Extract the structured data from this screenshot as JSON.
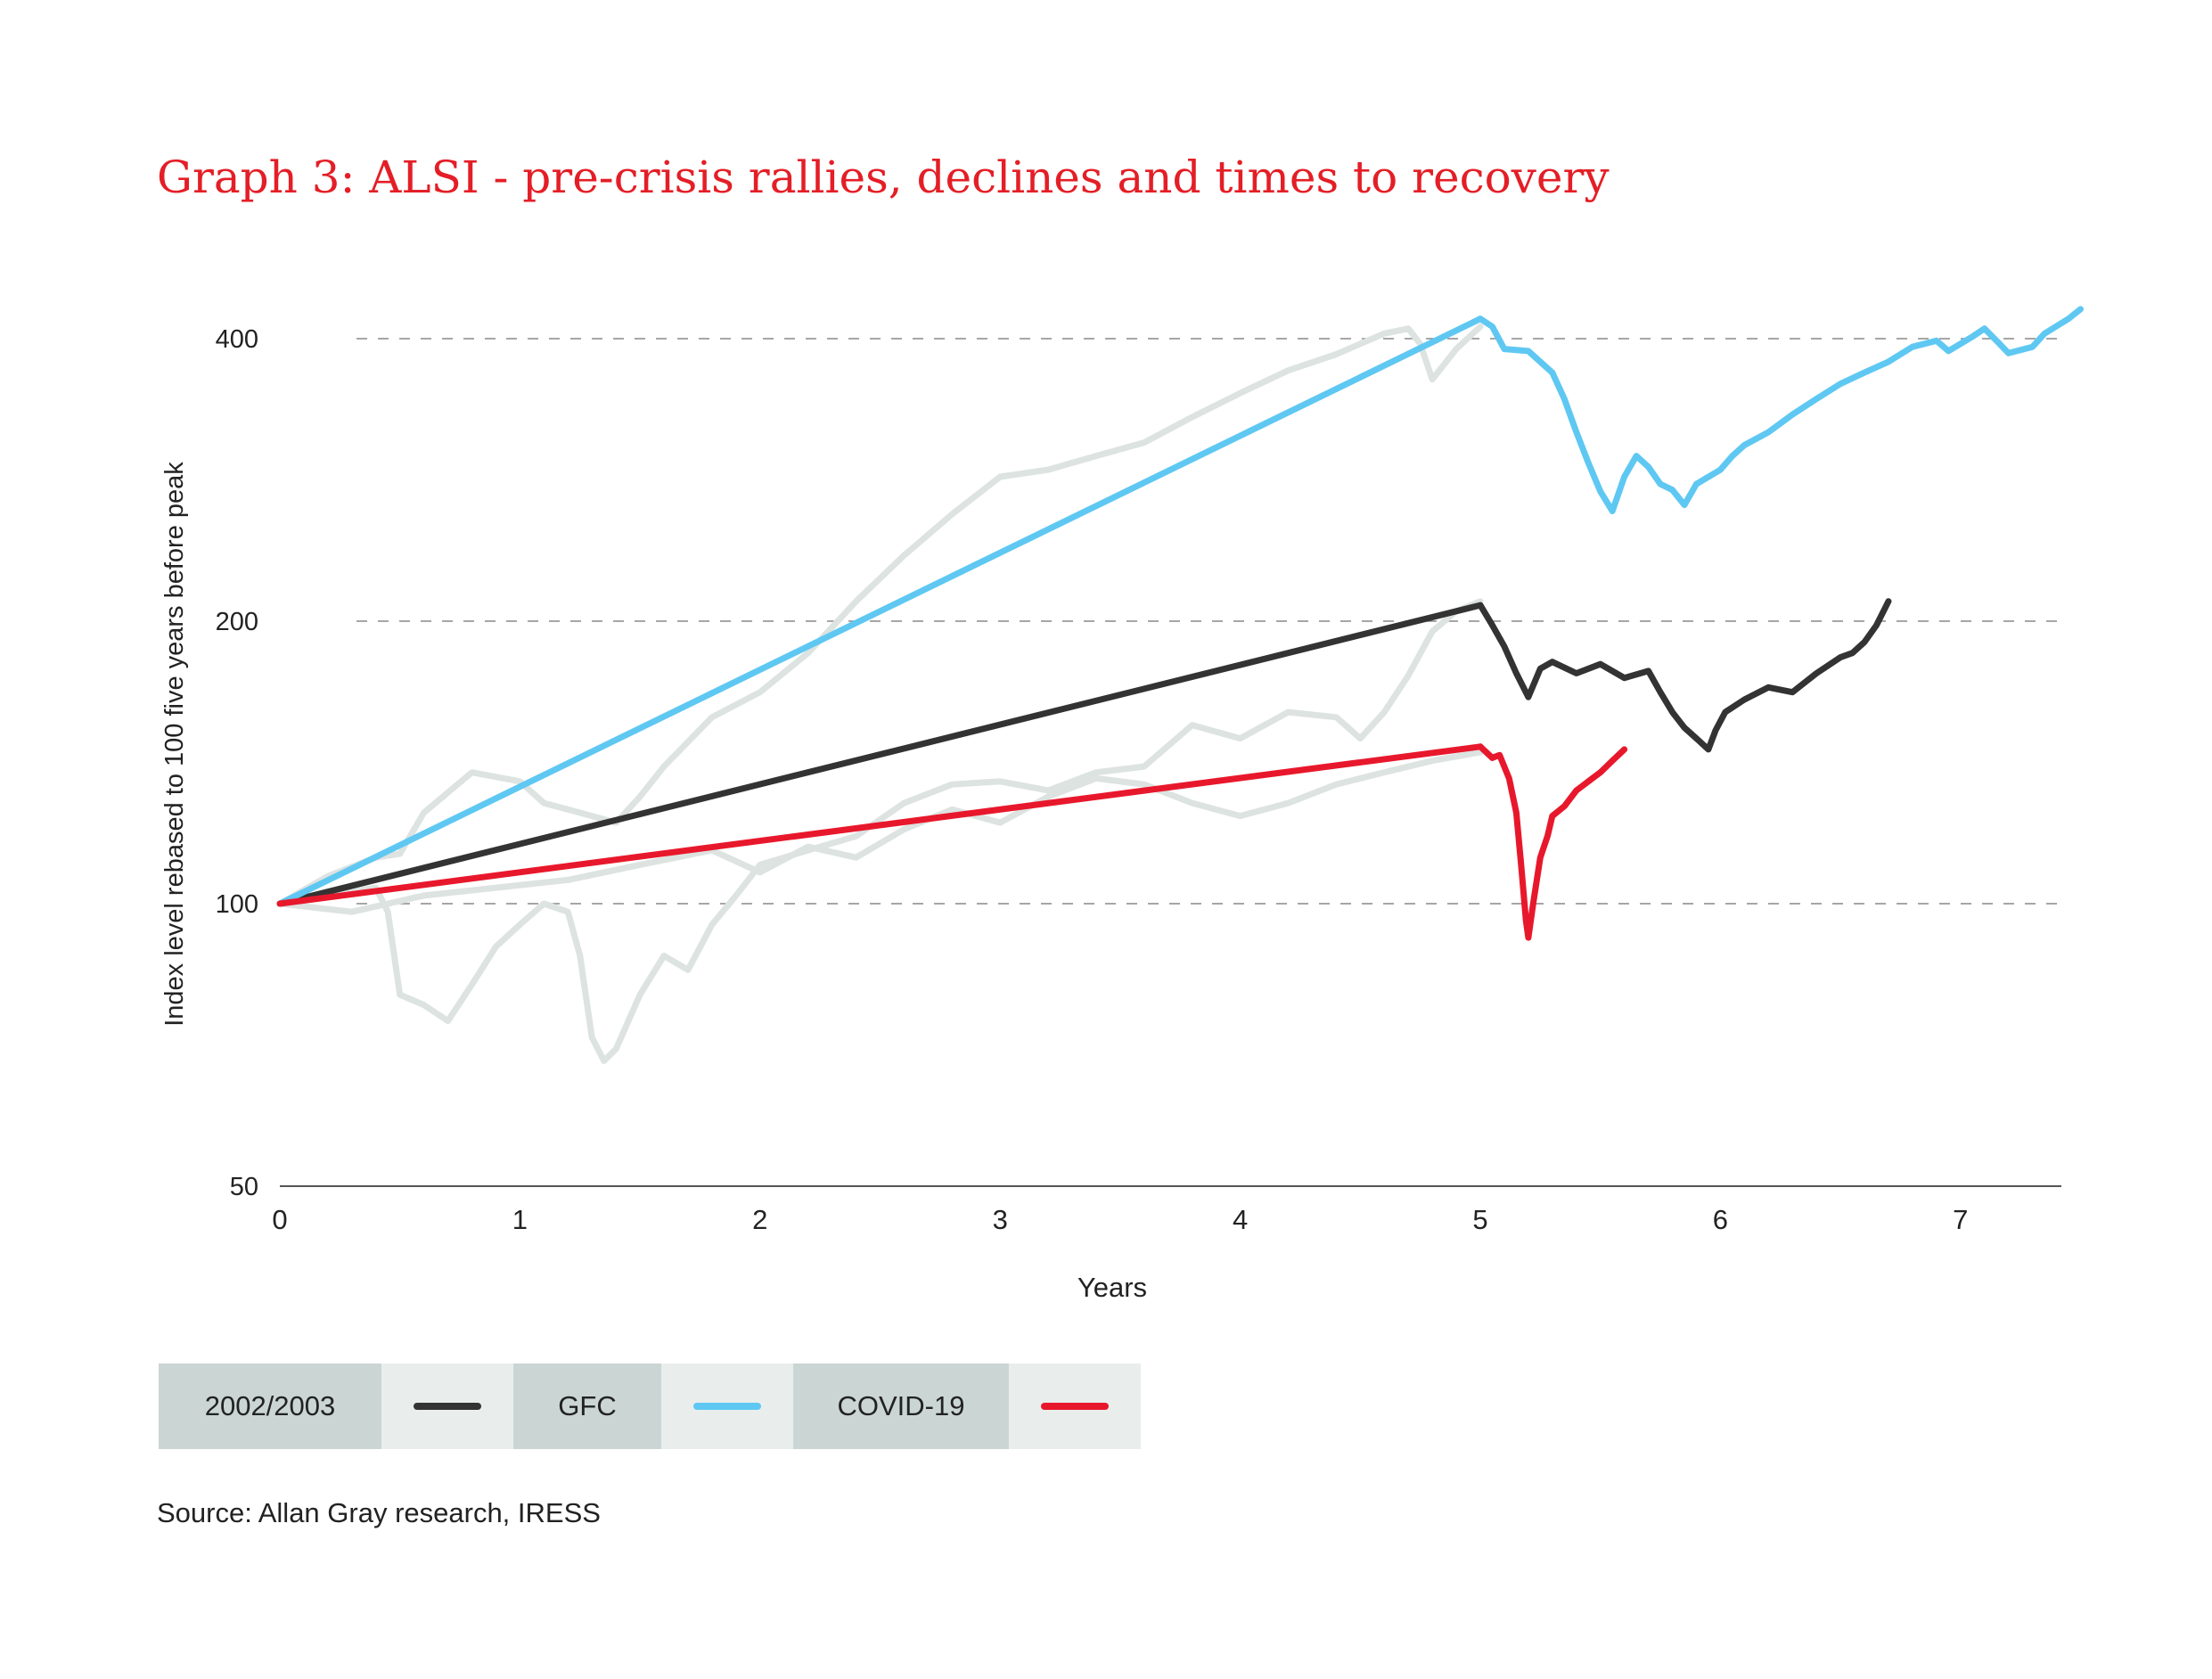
{
  "title": "Graph 3: ALSI - pre-crisis rallies, declines and times to recovery",
  "source": "Source: Allan Gray research, IRESS",
  "legend": [
    {
      "label": "2002/2003",
      "color": "#333333"
    },
    {
      "label": "GFC",
      "color": "#5fc8f2"
    },
    {
      "label": "COVID-19",
      "color": "#e8182c"
    }
  ],
  "colors": {
    "background_series": "#dde3e1",
    "grid": "#888888",
    "title": "#e41e26"
  },
  "chart_data": {
    "type": "line",
    "title": "Graph 3: ALSI - pre-crisis rallies, declines and times to recovery",
    "xlabel": "Years",
    "ylabel": "Index level rebased to 100 five years before peak",
    "x_ticks": [
      0,
      1,
      2,
      3,
      4,
      5,
      6,
      7
    ],
    "y_ticks": [
      50,
      100,
      200,
      400
    ],
    "y_scale": "log",
    "xlim": [
      0,
      7.5
    ],
    "ylim": [
      50,
      450
    ],
    "grid": "horizontal dashed",
    "legend_position": "bottom-left",
    "series": [
      {
        "name": "2002/2003",
        "role": "trend",
        "color": "#333333",
        "points": [
          [
            0,
            100
          ],
          [
            5,
            208
          ]
        ]
      },
      {
        "name": "2002/2003",
        "color": "#333333",
        "points": [
          [
            5,
            208
          ],
          [
            5.05,
            198
          ],
          [
            5.1,
            188
          ],
          [
            5.15,
            176
          ],
          [
            5.2,
            166
          ],
          [
            5.25,
            178
          ],
          [
            5.3,
            181
          ],
          [
            5.4,
            176
          ],
          [
            5.5,
            180
          ],
          [
            5.6,
            174
          ],
          [
            5.7,
            177
          ],
          [
            5.75,
            168
          ],
          [
            5.8,
            160
          ],
          [
            5.85,
            154
          ],
          [
            5.9,
            150
          ],
          [
            5.95,
            146
          ],
          [
            5.98,
            153
          ],
          [
            6.02,
            160
          ],
          [
            6.1,
            165
          ],
          [
            6.2,
            170
          ],
          [
            6.3,
            168
          ],
          [
            6.4,
            176
          ],
          [
            6.5,
            183
          ],
          [
            6.55,
            185
          ],
          [
            6.6,
            190
          ],
          [
            6.65,
            198
          ],
          [
            6.7,
            210
          ]
        ]
      },
      {
        "name": "GFC",
        "role": "trend",
        "color": "#5fc8f2",
        "points": [
          [
            0,
            100
          ],
          [
            5,
            420
          ]
        ]
      },
      {
        "name": "GFC",
        "color": "#5fc8f2",
        "points": [
          [
            5,
            420
          ],
          [
            5.05,
            412
          ],
          [
            5.1,
            390
          ],
          [
            5.2,
            388
          ],
          [
            5.3,
            368
          ],
          [
            5.35,
            345
          ],
          [
            5.4,
            318
          ],
          [
            5.45,
            295
          ],
          [
            5.5,
            275
          ],
          [
            5.55,
            262
          ],
          [
            5.6,
            285
          ],
          [
            5.65,
            300
          ],
          [
            5.7,
            292
          ],
          [
            5.75,
            280
          ],
          [
            5.8,
            276
          ],
          [
            5.85,
            266
          ],
          [
            5.9,
            280
          ],
          [
            6.0,
            290
          ],
          [
            6.05,
            300
          ],
          [
            6.1,
            308
          ],
          [
            6.2,
            318
          ],
          [
            6.3,
            332
          ],
          [
            6.4,
            345
          ],
          [
            6.5,
            358
          ],
          [
            6.6,
            368
          ],
          [
            6.7,
            378
          ],
          [
            6.8,
            392
          ],
          [
            6.9,
            398
          ],
          [
            6.95,
            388
          ],
          [
            7.05,
            402
          ],
          [
            7.1,
            410
          ],
          [
            7.15,
            398
          ],
          [
            7.2,
            386
          ],
          [
            7.3,
            392
          ],
          [
            7.35,
            405
          ],
          [
            7.45,
            420
          ],
          [
            7.5,
            430
          ]
        ]
      },
      {
        "name": "COVID-19",
        "role": "trend",
        "color": "#e8182c",
        "points": [
          [
            0,
            100
          ],
          [
            5,
            147
          ]
        ]
      },
      {
        "name": "COVID-19",
        "color": "#e8182c",
        "points": [
          [
            5,
            147
          ],
          [
            5.05,
            143
          ],
          [
            5.08,
            144
          ],
          [
            5.12,
            136
          ],
          [
            5.15,
            125
          ],
          [
            5.17,
            110
          ],
          [
            5.19,
            96
          ],
          [
            5.2,
            92
          ],
          [
            5.22,
            100
          ],
          [
            5.25,
            112
          ],
          [
            5.28,
            118
          ],
          [
            5.3,
            124
          ],
          [
            5.35,
            127
          ],
          [
            5.4,
            132
          ],
          [
            5.45,
            135
          ],
          [
            5.5,
            138
          ],
          [
            5.55,
            142
          ],
          [
            5.6,
            146
          ]
        ]
      },
      {
        "name": "",
        "role": "background",
        "color": "#dde3e1",
        "points": [
          [
            0,
            100
          ],
          [
            0.2,
            107
          ],
          [
            0.4,
            112
          ],
          [
            0.5,
            113
          ],
          [
            0.6,
            125
          ],
          [
            0.8,
            138
          ],
          [
            1.0,
            135
          ],
          [
            1.1,
            128
          ],
          [
            1.2,
            126
          ],
          [
            1.4,
            122
          ],
          [
            1.5,
            130
          ],
          [
            1.6,
            140
          ],
          [
            1.8,
            158
          ],
          [
            2.0,
            168
          ],
          [
            2.2,
            185
          ],
          [
            2.4,
            210
          ],
          [
            2.6,
            235
          ],
          [
            2.8,
            260
          ],
          [
            3.0,
            285
          ],
          [
            3.2,
            290
          ],
          [
            3.4,
            300
          ],
          [
            3.6,
            310
          ],
          [
            3.8,
            330
          ],
          [
            4.0,
            350
          ],
          [
            4.2,
            370
          ],
          [
            4.4,
            385
          ],
          [
            4.5,
            395
          ],
          [
            4.6,
            405
          ],
          [
            4.7,
            410
          ],
          [
            4.75,
            395
          ],
          [
            4.8,
            362
          ],
          [
            4.9,
            390
          ],
          [
            5.0,
            412
          ]
        ]
      },
      {
        "name": "",
        "role": "background",
        "color": "#dde3e1",
        "points": [
          [
            0,
            100
          ],
          [
            0.2,
            102
          ],
          [
            0.4,
            104
          ],
          [
            0.45,
            98
          ],
          [
            0.5,
            80
          ],
          [
            0.6,
            78
          ],
          [
            0.7,
            75
          ],
          [
            0.8,
            82
          ],
          [
            0.9,
            90
          ],
          [
            1.0,
            95
          ],
          [
            1.1,
            100
          ],
          [
            1.2,
            98
          ],
          [
            1.25,
            88
          ],
          [
            1.3,
            72
          ],
          [
            1.35,
            68
          ],
          [
            1.4,
            70
          ],
          [
            1.5,
            80
          ],
          [
            1.6,
            88
          ],
          [
            1.7,
            85
          ],
          [
            1.8,
            95
          ],
          [
            1.9,
            102
          ],
          [
            2.0,
            110
          ],
          [
            2.2,
            114
          ],
          [
            2.4,
            118
          ],
          [
            2.6,
            128
          ],
          [
            2.8,
            134
          ],
          [
            3.0,
            135
          ],
          [
            3.2,
            132
          ],
          [
            3.4,
            138
          ],
          [
            3.6,
            140
          ],
          [
            3.8,
            155
          ],
          [
            4.0,
            150
          ],
          [
            4.2,
            160
          ],
          [
            4.4,
            158
          ],
          [
            4.5,
            150
          ],
          [
            4.6,
            160
          ],
          [
            4.7,
            175
          ],
          [
            4.8,
            195
          ],
          [
            4.9,
            205
          ],
          [
            5.0,
            210
          ]
        ]
      },
      {
        "name": "",
        "role": "background",
        "color": "#dde3e1",
        "points": [
          [
            0,
            100
          ],
          [
            0.3,
            98
          ],
          [
            0.6,
            102
          ],
          [
            0.9,
            104
          ],
          [
            1.2,
            106
          ],
          [
            1.5,
            110
          ],
          [
            1.8,
            114
          ],
          [
            2.0,
            108
          ],
          [
            2.2,
            115
          ],
          [
            2.4,
            112
          ],
          [
            2.6,
            120
          ],
          [
            2.8,
            126
          ],
          [
            3.0,
            122
          ],
          [
            3.2,
            130
          ],
          [
            3.4,
            136
          ],
          [
            3.6,
            134
          ],
          [
            3.8,
            128
          ],
          [
            4.0,
            124
          ],
          [
            4.2,
            128
          ],
          [
            4.4,
            134
          ],
          [
            4.6,
            138
          ],
          [
            4.8,
            142
          ],
          [
            5.0,
            145
          ]
        ]
      }
    ]
  }
}
